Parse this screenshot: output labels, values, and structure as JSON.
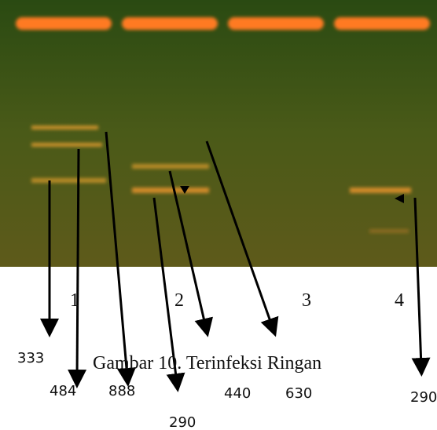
{
  "figure": {
    "lane_labels": [
      "1",
      "2",
      "3",
      "4"
    ],
    "caption": "Gambar 10. Terinfeksi Ringan",
    "size_labels": [
      "333",
      "484",
      "888",
      "290",
      "440",
      "630",
      "290"
    ]
  }
}
